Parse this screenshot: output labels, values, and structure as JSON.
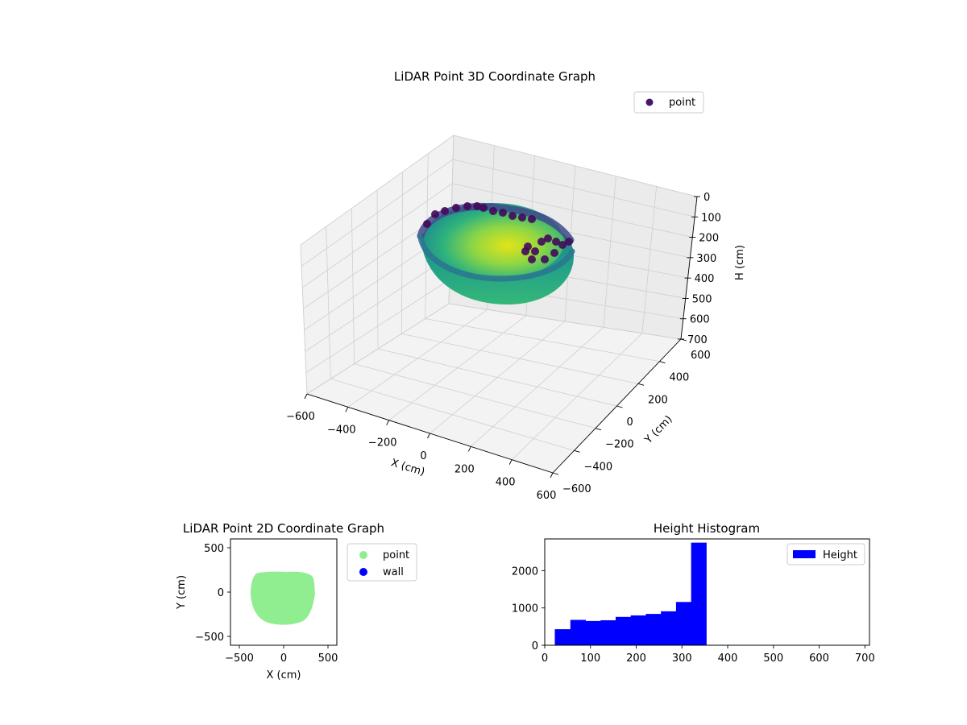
{
  "chart_data": [
    {
      "type": "scatter",
      "projection": "3d",
      "title": "LiDAR Point 3D Coordinate Graph",
      "xlabel": "X (cm)",
      "ylabel": "Y (cm)",
      "zlabel": "H (cm)",
      "xlim": [
        -600,
        600
      ],
      "ylim": [
        -600,
        600
      ],
      "zlim": [
        700,
        0
      ],
      "z_inverted": true,
      "xticks": [
        -600,
        -400,
        -200,
        0,
        200,
        400,
        600
      ],
      "yticks": [
        -600,
        -400,
        -200,
        0,
        200,
        400,
        600
      ],
      "zticks": [
        0,
        100,
        200,
        300,
        400,
        500,
        600,
        700
      ],
      "xtick_labels": [
        "−600",
        "−400",
        "−200",
        "0",
        "200",
        "400",
        "600"
      ],
      "ytick_labels": [
        "−600",
        "−400",
        "−200",
        "0",
        "200",
        "400",
        "600"
      ],
      "ztick_labels": [
        "0",
        "100",
        "200",
        "300",
        "400",
        "500",
        "600",
        "700"
      ],
      "grid": true,
      "legend": {
        "placement": "upper right",
        "entries": [
          {
            "label": "point",
            "color": "#46176f"
          }
        ]
      },
      "colormap": "viridis",
      "series": [
        {
          "name": "point",
          "shape": "bowl",
          "rim_height": 150,
          "bottom_height": 340,
          "x_range": [
            -420,
            390
          ],
          "y_range": [
            -420,
            220
          ]
        }
      ]
    },
    {
      "type": "scatter",
      "title": "LiDAR Point 2D Coordinate Graph",
      "xlabel": "X (cm)",
      "ylabel": "Y (cm)",
      "xlim": [
        -600,
        600
      ],
      "ylim": [
        -600,
        600
      ],
      "xticks": [
        -500,
        0,
        500
      ],
      "yticks": [
        -500,
        0,
        500
      ],
      "xtick_labels": [
        "−500",
        "0",
        "500"
      ],
      "ytick_labels": [
        "−500",
        "0",
        "500"
      ],
      "grid": false,
      "legend": {
        "placement": "outside right",
        "entries": [
          {
            "label": "point",
            "color": "#90ee90"
          },
          {
            "label": "wall",
            "color": "#0000ff"
          }
        ]
      },
      "series": [
        {
          "name": "point",
          "color": "#90ee90",
          "x_range": [
            -420,
            390
          ],
          "y_range": [
            -420,
            220
          ]
        },
        {
          "name": "wall",
          "color": "#0000ff",
          "count": 0
        }
      ]
    },
    {
      "type": "bar",
      "title": "Height Histogram",
      "xlabel": "",
      "ylabel": "",
      "xlim": [
        0,
        710
      ],
      "ylim": [
        0,
        2850
      ],
      "xticks": [
        0,
        100,
        200,
        300,
        400,
        500,
        600,
        700
      ],
      "yticks": [
        0,
        1000,
        2000
      ],
      "xtick_labels": [
        "0",
        "100",
        "200",
        "300",
        "400",
        "500",
        "600",
        "700"
      ],
      "ytick_labels": [
        "0",
        "1000",
        "2000"
      ],
      "legend": {
        "placement": "upper right",
        "entries": [
          {
            "label": "Height",
            "color": "#0000ff"
          }
        ]
      },
      "color": "#0000ff",
      "bins": [
        {
          "x0": 22,
          "x1": 56,
          "value": 430
        },
        {
          "x0": 56,
          "x1": 89,
          "value": 680
        },
        {
          "x0": 89,
          "x1": 122,
          "value": 650
        },
        {
          "x0": 122,
          "x1": 155,
          "value": 670
        },
        {
          "x0": 155,
          "x1": 188,
          "value": 760
        },
        {
          "x0": 188,
          "x1": 221,
          "value": 800
        },
        {
          "x0": 221,
          "x1": 254,
          "value": 840
        },
        {
          "x0": 254,
          "x1": 287,
          "value": 910
        },
        {
          "x0": 287,
          "x1": 320,
          "value": 1160
        },
        {
          "x0": 320,
          "x1": 353,
          "value": 2750
        }
      ]
    }
  ]
}
